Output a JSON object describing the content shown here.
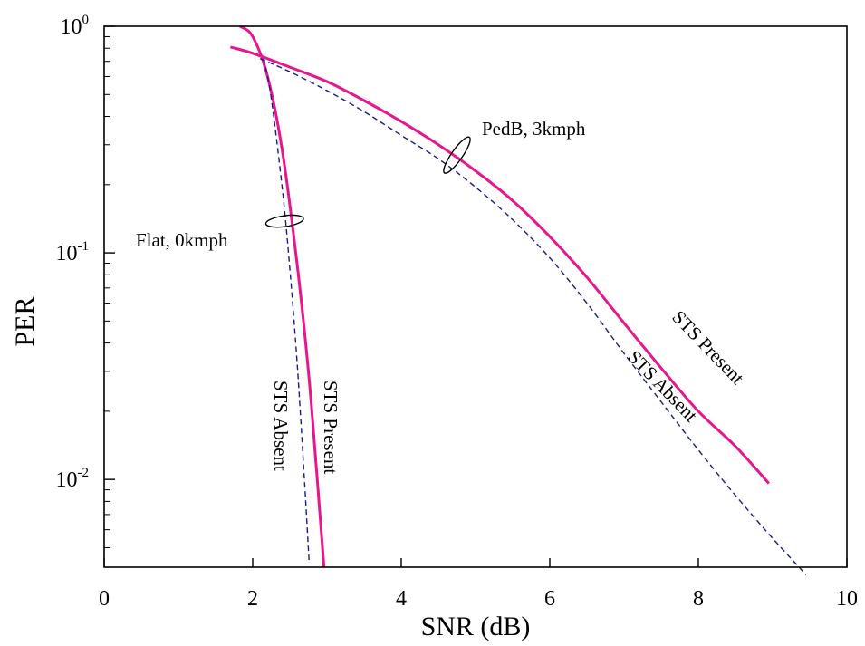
{
  "chart_data": {
    "type": "line",
    "title": "",
    "xlabel": "SNR (dB)",
    "ylabel": "PER",
    "xlim": [
      0,
      10
    ],
    "ylim": [
      0.0041,
      1
    ],
    "yscale": "log",
    "grid": false,
    "x_ticks": [
      0,
      2,
      4,
      6,
      8,
      10
    ],
    "x_tick_labels": [
      "0",
      "2",
      "4",
      "6",
      "8",
      "10"
    ],
    "y_ticks": [
      {
        "value": 1,
        "base": "10",
        "exp": "0"
      },
      {
        "value": 0.1,
        "base": "10",
        "exp": "-1"
      },
      {
        "value": 0.01,
        "base": "10",
        "exp": "-2"
      }
    ],
    "series": [
      {
        "channel": "Flat, 0kmph",
        "label": "STS Present",
        "style": "solid",
        "color": "#E8168C",
        "points": [
          [
            1.83,
            1.0
          ],
          [
            2.0,
            0.9
          ],
          [
            2.2,
            0.6
          ],
          [
            2.4,
            0.28
          ],
          [
            2.6,
            0.088
          ],
          [
            2.75,
            0.03
          ],
          [
            2.85,
            0.012
          ],
          [
            2.93,
            0.0055
          ],
          [
            2.96,
            0.0041
          ]
        ]
      },
      {
        "channel": "Flat, 0kmph",
        "label": "STS Absent",
        "style": "dashed",
        "color": "#1A1A8C",
        "points": [
          [
            2.15,
            0.72
          ],
          [
            2.25,
            0.48
          ],
          [
            2.4,
            0.19
          ],
          [
            2.5,
            0.085
          ],
          [
            2.6,
            0.032
          ],
          [
            2.7,
            0.0095
          ],
          [
            2.76,
            0.0043
          ]
        ]
      },
      {
        "channel": "PedB, 3kmph",
        "label": "STS Present",
        "style": "solid",
        "color": "#E8168C",
        "points": [
          [
            1.7,
            0.81
          ],
          [
            2.0,
            0.76
          ],
          [
            2.5,
            0.66
          ],
          [
            3.0,
            0.57
          ],
          [
            3.5,
            0.47
          ],
          [
            4.0,
            0.38
          ],
          [
            4.5,
            0.3
          ],
          [
            5.0,
            0.23
          ],
          [
            5.5,
            0.17
          ],
          [
            6.0,
            0.118
          ],
          [
            6.5,
            0.078
          ],
          [
            7.0,
            0.049
          ],
          [
            7.5,
            0.031
          ],
          [
            8.0,
            0.02
          ],
          [
            8.5,
            0.014
          ],
          [
            8.95,
            0.0096
          ]
        ]
      },
      {
        "channel": "PedB, 3kmph",
        "label": "STS Absent",
        "style": "dashed",
        "color": "#1A1A8C",
        "points": [
          [
            2.1,
            0.72
          ],
          [
            2.5,
            0.63
          ],
          [
            3.0,
            0.52
          ],
          [
            3.5,
            0.42
          ],
          [
            4.0,
            0.33
          ],
          [
            4.5,
            0.26
          ],
          [
            5.0,
            0.195
          ],
          [
            5.5,
            0.14
          ],
          [
            6.0,
            0.095
          ],
          [
            6.5,
            0.06
          ],
          [
            7.0,
            0.036
          ],
          [
            7.5,
            0.022
          ],
          [
            8.0,
            0.0135
          ],
          [
            8.5,
            0.0085
          ],
          [
            9.0,
            0.0055
          ],
          [
            9.45,
            0.0038
          ]
        ]
      }
    ],
    "annotations": [
      {
        "text": "Flat, 0kmph",
        "at": [
          0.4,
          0.12
        ]
      },
      {
        "text": "PedB, 3kmph",
        "at": [
          4.9,
          0.35
        ]
      },
      {
        "text": "STS Absent",
        "rotated": true
      },
      {
        "text": "STS Present",
        "rotated": true
      },
      {
        "text": "STS Present",
        "rotated": true
      },
      {
        "text": "STS Absent",
        "rotated": true
      }
    ],
    "group_markers": [
      {
        "channel": "Flat, 0kmph",
        "center": [
          2.43,
          0.138
        ]
      },
      {
        "channel": "PedB, 3kmph",
        "center": [
          4.75,
          0.27
        ]
      }
    ]
  }
}
